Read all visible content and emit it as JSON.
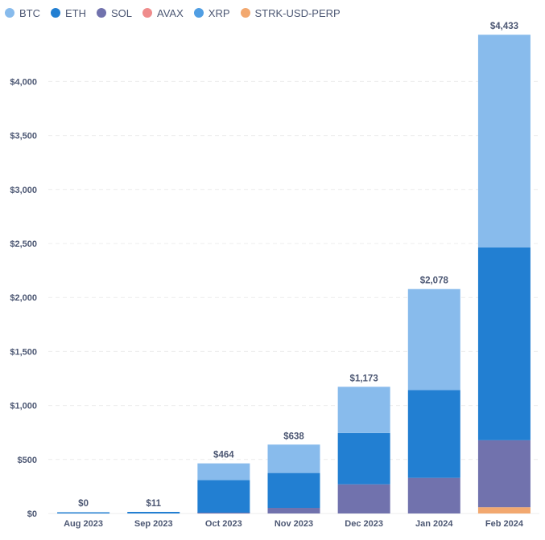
{
  "chart_data": {
    "type": "bar",
    "stacked": true,
    "categories": [
      "Aug 2023",
      "Sep 2023",
      "Oct 2023",
      "Nov 2023",
      "Dec 2023",
      "Jan 2024",
      "Feb 2024"
    ],
    "series": [
      {
        "name": "STRK-USD-PERP",
        "color": "#f2a86f",
        "values": [
          0,
          0,
          0,
          0,
          0,
          0,
          58
        ]
      },
      {
        "name": "AVAX",
        "color": "#ef8c8c",
        "values": [
          0,
          0,
          0,
          0,
          0,
          0,
          0
        ]
      },
      {
        "name": "XRP",
        "color": "#509ee3",
        "values": [
          0,
          0,
          0,
          0,
          0,
          0,
          0
        ]
      },
      {
        "name": "SOL",
        "color": "#7172ad",
        "values": [
          0,
          0,
          8,
          52,
          270,
          330,
          620
        ]
      },
      {
        "name": "ETH",
        "color": "#227fd2",
        "values": [
          0,
          11,
          302,
          323,
          475,
          812,
          1785
        ]
      },
      {
        "name": "BTC",
        "color": "#88bbec",
        "values": [
          0,
          0,
          154,
          263,
          428,
          936,
          1970
        ]
      }
    ],
    "legend_order": [
      "BTC",
      "ETH",
      "SOL",
      "AVAX",
      "XRP",
      "STRK-USD-PERP"
    ],
    "totals": [
      "$0",
      "$11",
      "$464",
      "$638",
      "$1,173",
      "$2,078",
      "$4,433"
    ],
    "y_ticks": [
      0,
      500,
      1000,
      1500,
      2000,
      2500,
      3000,
      3500,
      4000
    ],
    "y_tick_labels": [
      "$0",
      "$500",
      "$1,000",
      "$1,500",
      "$2,000",
      "$2,500",
      "$3,000",
      "$3,500",
      "$4,000"
    ],
    "ylim": [
      0,
      4500
    ],
    "title": "",
    "xlabel": "",
    "ylabel": "",
    "grid": true,
    "legend_position": "top-left"
  },
  "colors": {
    "axis_text": "#4c5773",
    "grid": "#ececec"
  }
}
